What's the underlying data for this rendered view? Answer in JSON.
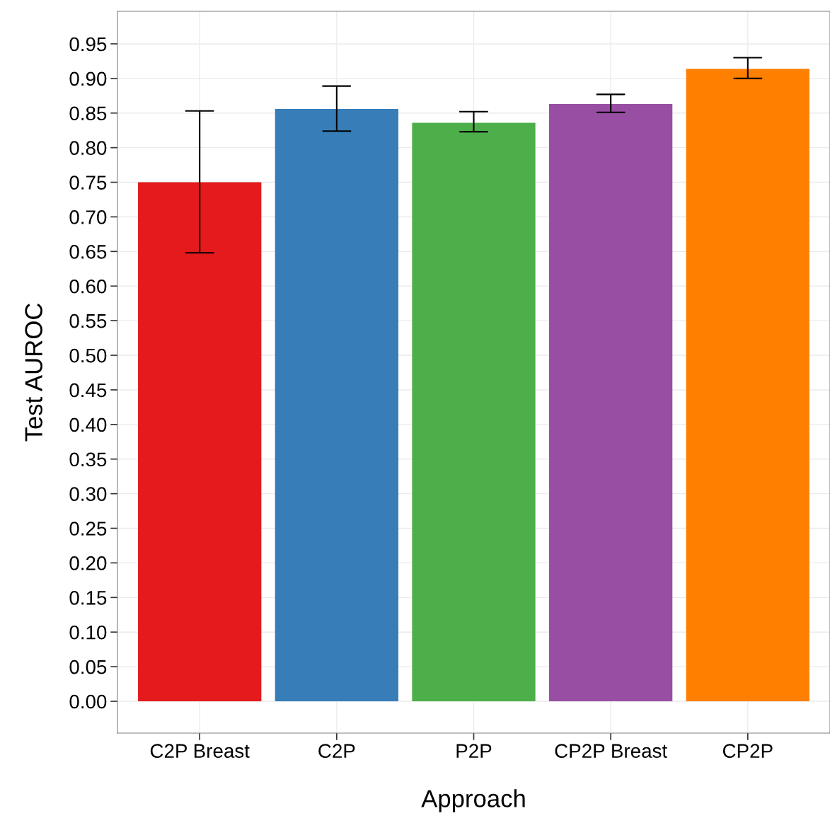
{
  "chart_data": {
    "type": "bar",
    "xlabel": "Approach",
    "ylabel": "Test AUROC",
    "categories": [
      "C2P Breast",
      "C2P",
      "P2P",
      "CP2P Breast",
      "CP2P"
    ],
    "values": [
      0.75,
      0.856,
      0.836,
      0.863,
      0.914
    ],
    "colors": [
      "#e41a1c",
      "#377eb8",
      "#4daf4a",
      "#984ea3",
      "#ff7f00"
    ],
    "errors": [
      [
        0.648,
        0.853
      ],
      [
        0.824,
        0.889
      ],
      [
        0.823,
        0.852
      ],
      [
        0.851,
        0.877
      ],
      [
        0.9,
        0.93
      ]
    ],
    "ylim": [
      -0.046,
      0.997
    ],
    "yticks": [
      {
        "value": 0,
        "label": "0.00"
      },
      {
        "value": 0.05,
        "label": "0.05"
      },
      {
        "value": 0.1,
        "label": "0.10"
      },
      {
        "value": 0.15,
        "label": "0.15"
      },
      {
        "value": 0.2,
        "label": "0.20"
      },
      {
        "value": 0.25,
        "label": "0.25"
      },
      {
        "value": 0.3,
        "label": "0.30"
      },
      {
        "value": 0.35,
        "label": "0.35"
      },
      {
        "value": 0.4,
        "label": "0.40"
      },
      {
        "value": 0.45,
        "label": "0.45"
      },
      {
        "value": 0.5,
        "label": "0.50"
      },
      {
        "value": 0.55,
        "label": "0.55"
      },
      {
        "value": 0.6,
        "label": "0.60"
      },
      {
        "value": 0.65,
        "label": "0.65"
      },
      {
        "value": 0.7,
        "label": "0.70"
      },
      {
        "value": 0.75,
        "label": "0.75"
      },
      {
        "value": 0.8,
        "label": "0.80"
      },
      {
        "value": 0.85,
        "label": "0.85"
      },
      {
        "value": 0.9,
        "label": "0.90"
      },
      {
        "value": 0.95,
        "label": "0.95"
      }
    ],
    "grid": true
  }
}
